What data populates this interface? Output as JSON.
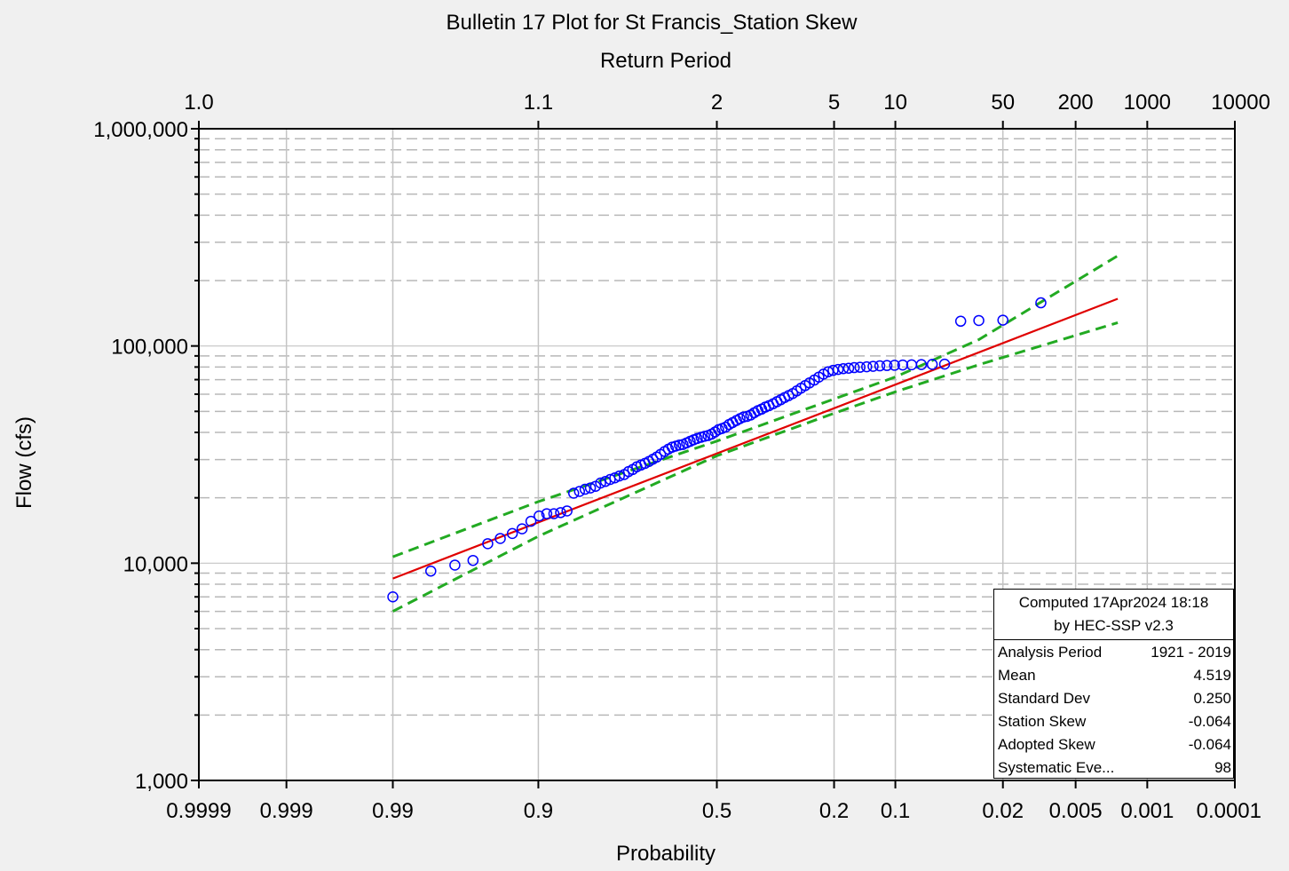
{
  "chart_data": {
    "type": "scatter",
    "title": "Bulletin 17 Plot for St Francis_Station Skew",
    "top_axis_label": "Return Period",
    "xlabel": "Probability",
    "ylabel": "Flow (cfs)",
    "x_scale": "normal-probability (exceedance)",
    "y_scale": "log",
    "ylim": [
      1000,
      1000000
    ],
    "xlim": [
      0.9999,
      0.0001
    ],
    "grid": true,
    "x_ticks": [
      {
        "p": 0.9999,
        "label": "0.9999"
      },
      {
        "p": 0.999,
        "label": "0.999"
      },
      {
        "p": 0.99,
        "label": "0.99"
      },
      {
        "p": 0.9,
        "label": "0.9"
      },
      {
        "p": 0.5,
        "label": "0.5"
      },
      {
        "p": 0.2,
        "label": "0.2"
      },
      {
        "p": 0.1,
        "label": "0.1"
      },
      {
        "p": 0.02,
        "label": "0.02"
      },
      {
        "p": 0.005,
        "label": "0.005"
      },
      {
        "p": 0.001,
        "label": "0.001"
      },
      {
        "p": 0.0001,
        "label": "0.0001"
      }
    ],
    "top_ticks": [
      {
        "p": 0.9999,
        "label": "1.0"
      },
      {
        "p": 0.9,
        "label": "1.1"
      },
      {
        "p": 0.5,
        "label": "2"
      },
      {
        "p": 0.2,
        "label": "5"
      },
      {
        "p": 0.1,
        "label": "10"
      },
      {
        "p": 0.02,
        "label": "50"
      },
      {
        "p": 0.005,
        "label": "200"
      },
      {
        "p": 0.001,
        "label": "1000"
      },
      {
        "p": 0.0001,
        "label": "10000"
      }
    ],
    "y_ticks": [
      {
        "v": 1000,
        "label": "1,000"
      },
      {
        "v": 10000,
        "label": "10,000"
      },
      {
        "v": 100000,
        "label": "100,000"
      },
      {
        "v": 1000000,
        "label": "1,000,000"
      }
    ],
    "series": [
      {
        "type": "line",
        "color": "#e00000",
        "style": "solid",
        "x": [
          0.99,
          0.002
        ],
        "y": [
          8500,
          165000
        ]
      },
      {
        "type": "line",
        "color": "#22aa22",
        "style": "dashed",
        "x": [
          0.99,
          0.9,
          0.5,
          0.2,
          0.1,
          0.03,
          0.002
        ],
        "y": [
          10700,
          19200,
          36500,
          57000,
          72000,
          107000,
          260000
        ]
      },
      {
        "type": "line",
        "color": "#22aa22",
        "style": "dashed",
        "x": [
          0.99,
          0.9,
          0.5,
          0.2,
          0.1,
          0.03,
          0.002
        ],
        "y": [
          6000,
          13300,
          31200,
          49000,
          61500,
          82000,
          128000
        ]
      },
      {
        "type": "scatter",
        "color": "#0000ff",
        "marker": "circle",
        "x": [
          0.99,
          0.98,
          0.97,
          0.96,
          0.95,
          0.94,
          0.929,
          0.919,
          0.909,
          0.899,
          0.889,
          0.879,
          0.869,
          0.859,
          0.848,
          0.838,
          0.828,
          0.818,
          0.808,
          0.798,
          0.788,
          0.778,
          0.768,
          0.758,
          0.747,
          0.737,
          0.727,
          0.717,
          0.707,
          0.697,
          0.687,
          0.677,
          0.667,
          0.657,
          0.646,
          0.636,
          0.626,
          0.616,
          0.606,
          0.596,
          0.586,
          0.576,
          0.566,
          0.556,
          0.545,
          0.535,
          0.525,
          0.515,
          0.505,
          0.495,
          0.485,
          0.475,
          0.465,
          0.455,
          0.444,
          0.434,
          0.424,
          0.414,
          0.404,
          0.394,
          0.384,
          0.374,
          0.364,
          0.354,
          0.343,
          0.333,
          0.323,
          0.313,
          0.303,
          0.293,
          0.283,
          0.273,
          0.263,
          0.253,
          0.242,
          0.232,
          0.222,
          0.212,
          0.202,
          0.192,
          0.182,
          0.172,
          0.162,
          0.152,
          0.141,
          0.131,
          0.121,
          0.111,
          0.101,
          0.091,
          0.081,
          0.071,
          0.061,
          0.051,
          0.04,
          0.03,
          0.02,
          0.01
        ],
        "y": [
          7000,
          9200,
          9800,
          10300,
          12300,
          13000,
          13700,
          14400,
          15600,
          16500,
          16900,
          16900,
          17100,
          17400,
          21000,
          21400,
          21900,
          22200,
          22600,
          23400,
          23800,
          24300,
          24700,
          25200,
          25600,
          26400,
          27000,
          27800,
          28300,
          28800,
          29400,
          30100,
          30800,
          31700,
          32700,
          33500,
          34200,
          34600,
          35000,
          35200,
          35800,
          36400,
          37000,
          37500,
          38000,
          38400,
          38700,
          39300,
          40200,
          41200,
          41700,
          42300,
          43500,
          44400,
          45400,
          46300,
          47100,
          47400,
          48100,
          49300,
          50400,
          51200,
          52300,
          53100,
          54200,
          55400,
          56600,
          57900,
          59100,
          60400,
          62100,
          63900,
          65700,
          67600,
          69700,
          71900,
          74200,
          76100,
          77200,
          78000,
          78600,
          79000,
          79500,
          79800,
          80200,
          80600,
          81000,
          81300,
          81500,
          81700,
          81900,
          82100,
          82300,
          82500,
          130000,
          131000,
          131500,
          158000
        ]
      }
    ]
  },
  "legend": {
    "line1": "Computed 17Apr2024 18:18",
    "line2": "by HEC-SSP v2.3",
    "rows": [
      {
        "label": "Analysis Period",
        "value": "1921 - 2019"
      },
      {
        "label": "Mean",
        "value": "4.519"
      },
      {
        "label": "Standard Dev",
        "value": "0.250"
      },
      {
        "label": "Station Skew",
        "value": "-0.064"
      },
      {
        "label": "Adopted Skew",
        "value": "-0.064"
      },
      {
        "label": "Systematic Eve...",
        "value": "98"
      }
    ]
  }
}
